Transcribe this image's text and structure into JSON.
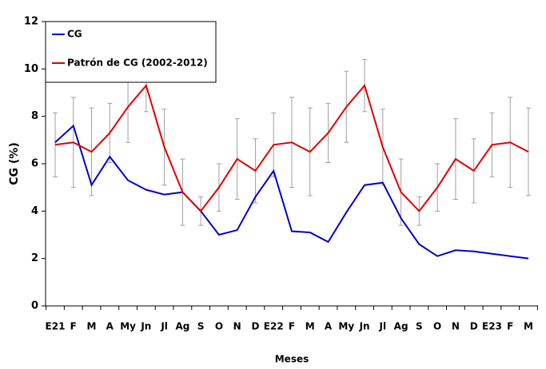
{
  "chart_data": {
    "type": "line",
    "categories": [
      "E21",
      "F",
      "M",
      "A",
      "My",
      "Jn",
      "Jl",
      "Ag",
      "S",
      "O",
      "N",
      "D",
      "E22",
      "F",
      "M",
      "A",
      "My",
      "Jn",
      "Jl",
      "Ag",
      "S",
      "O",
      "N",
      "D",
      "E23",
      "F",
      "M"
    ],
    "series": [
      {
        "name": "CG",
        "color": "#0000cc",
        "values": [
          6.9,
          7.6,
          5.1,
          6.3,
          5.3,
          4.9,
          4.7,
          4.8,
          4.0,
          3.0,
          3.2,
          4.6,
          5.7,
          3.15,
          3.1,
          2.7,
          3.95,
          5.1,
          5.2,
          3.7,
          2.6,
          2.1,
          2.35,
          2.3,
          2.2,
          2.1,
          2.0
        ]
      },
      {
        "name": "Patrón de CG (2002-2012)",
        "color": "#e00000",
        "values": [
          6.8,
          6.9,
          6.5,
          7.3,
          8.4,
          9.3,
          6.7,
          4.8,
          4.0,
          5.0,
          6.2,
          5.7,
          6.8,
          6.9,
          6.5,
          7.3,
          8.4,
          9.3,
          6.7,
          4.8,
          4.0,
          5.0,
          6.2,
          5.7,
          6.8,
          6.9,
          6.5
        ],
        "errors": [
          1.35,
          1.9,
          1.85,
          1.25,
          1.5,
          1.1,
          1.6,
          1.4,
          0.6,
          1.0,
          1.7,
          1.35,
          1.35,
          1.9,
          1.85,
          1.25,
          1.5,
          1.1,
          1.6,
          1.4,
          0.6,
          1.0,
          1.7,
          1.35,
          1.35,
          1.9,
          1.85
        ],
        "error_color": "#a0a0a0"
      }
    ],
    "ylim": [
      0,
      12
    ],
    "yticks": [
      0,
      2,
      4,
      6,
      8,
      10,
      12
    ],
    "xlabel": "Meses",
    "ylabel": "CG (%)",
    "legend": "upper left",
    "grid": false
  }
}
